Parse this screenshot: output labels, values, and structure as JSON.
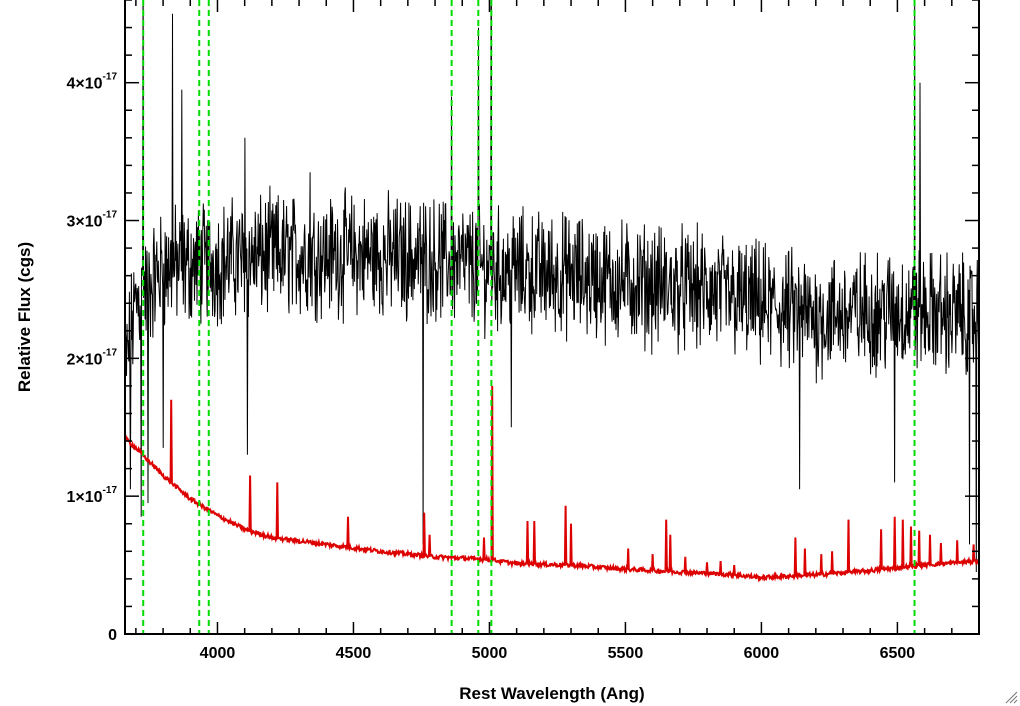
{
  "chart_data": {
    "type": "line",
    "xlabel": "Rest Wavelength (Ang)",
    "ylabel": "Relative Flux (cgs)",
    "xlim": [
      3660,
      6800
    ],
    "ylim": [
      0,
      4.6e-17
    ],
    "x_ticks": [
      {
        "value": 4000,
        "label": "4000"
      },
      {
        "value": 4500,
        "label": "4500"
      },
      {
        "value": 5000,
        "label": "5000"
      },
      {
        "value": 5500,
        "label": "5500"
      },
      {
        "value": 6000,
        "label": "6000"
      },
      {
        "value": 6500,
        "label": "6500"
      }
    ],
    "y_ticks": [
      {
        "value": 0,
        "label": "0",
        "exp": ""
      },
      {
        "value": 1e-17,
        "label": "1×10",
        "exp": "-17"
      },
      {
        "value": 2e-17,
        "label": "2×10",
        "exp": "-17"
      },
      {
        "value": 3e-17,
        "label": "3×10",
        "exp": "-17"
      },
      {
        "value": 4e-17,
        "label": "4×10",
        "exp": "-17"
      }
    ],
    "series": [
      {
        "color": "#000000",
        "style": "solid",
        "continuum": [
          [
            3660,
            1.9e-17
          ],
          [
            3700,
            2.4e-17
          ],
          [
            3800,
            2.65e-17
          ],
          [
            4000,
            2.7e-17
          ],
          [
            4200,
            2.75e-17
          ],
          [
            4500,
            2.75e-17
          ],
          [
            4800,
            2.72e-17
          ],
          [
            5000,
            2.65e-17
          ],
          [
            5300,
            2.6e-17
          ],
          [
            5500,
            2.55e-17
          ],
          [
            5800,
            2.48e-17
          ],
          [
            6000,
            2.38e-17
          ],
          [
            6200,
            2.3e-17
          ],
          [
            6500,
            2.35e-17
          ],
          [
            6800,
            2.3e-17
          ]
        ],
        "noise": 3.5e-18,
        "peaks": [
          [
            3727,
            5e-17
          ],
          [
            3835,
            4.5e-17
          ],
          [
            3868,
            3.95e-17
          ],
          [
            4101,
            3.6e-17
          ],
          [
            4340,
            3.35e-17
          ],
          [
            4861,
            3.9e-17
          ],
          [
            4959,
            4.4e-17
          ],
          [
            5007,
            6e-17
          ],
          [
            6563,
            4.6e-17
          ],
          [
            6583,
            4e-17
          ]
        ],
        "dips": [
          [
            3680,
            1.05e-17
          ],
          [
            3720,
            8.5e-18
          ],
          [
            3745,
            9.5e-18
          ],
          [
            3800,
            1.35e-17
          ],
          [
            4110,
            1.3e-17
          ],
          [
            4756,
            6.5e-18
          ],
          [
            5080,
            1.5e-17
          ],
          [
            6140,
            1.05e-17
          ],
          [
            6490,
            1.1e-17
          ],
          [
            6765,
            6.5e-18
          ],
          [
            6790,
            4.5e-18
          ]
        ]
      },
      {
        "color": "#dd0000",
        "style": "solid",
        "continuum": [
          [
            3660,
            1.42e-17
          ],
          [
            3700,
            1.35e-17
          ],
          [
            3800,
            1.15e-17
          ],
          [
            3900,
            9.8e-18
          ],
          [
            4000,
            8.6e-18
          ],
          [
            4100,
            7.6e-18
          ],
          [
            4200,
            7e-18
          ],
          [
            4400,
            6.5e-18
          ],
          [
            4600,
            6e-18
          ],
          [
            4800,
            5.6e-18
          ],
          [
            5000,
            5.4e-18
          ],
          [
            5100,
            5.1e-18
          ],
          [
            5300,
            5e-18
          ],
          [
            5500,
            4.7e-18
          ],
          [
            5700,
            4.5e-18
          ],
          [
            5900,
            4.3e-18
          ],
          [
            6000,
            4.1e-18
          ],
          [
            6200,
            4.3e-18
          ],
          [
            6400,
            4.6e-18
          ],
          [
            6600,
            5e-18
          ],
          [
            6800,
            5.3e-18
          ]
        ],
        "noise": 1.5e-19,
        "peaks": [
          [
            3830,
            1.7e-17
          ],
          [
            4120,
            1.15e-17
          ],
          [
            4220,
            1.1e-17
          ],
          [
            4480,
            8.5e-18
          ],
          [
            4760,
            8.8e-18
          ],
          [
            4780,
            7.2e-18
          ],
          [
            4980,
            7e-18
          ],
          [
            5010,
            1.8e-17
          ],
          [
            5140,
            8.2e-18
          ],
          [
            5165,
            8.2e-18
          ],
          [
            5280,
            9.3e-18
          ],
          [
            5300,
            8e-18
          ],
          [
            5510,
            6.2e-18
          ],
          [
            5600,
            5.8e-18
          ],
          [
            5650,
            8.3e-18
          ],
          [
            5665,
            7.2e-18
          ],
          [
            5720,
            5.6e-18
          ],
          [
            5800,
            5.2e-18
          ],
          [
            5850,
            5.3e-18
          ],
          [
            5900,
            5e-18
          ],
          [
            6125,
            7e-18
          ],
          [
            6160,
            6.2e-18
          ],
          [
            6220,
            5.8e-18
          ],
          [
            6260,
            6e-18
          ],
          [
            6320,
            8.3e-18
          ],
          [
            6440,
            7.6e-18
          ],
          [
            6490,
            8.5e-18
          ],
          [
            6520,
            8.3e-18
          ],
          [
            6550,
            7.8e-18
          ],
          [
            6580,
            7.5e-18
          ],
          [
            6620,
            7.2e-18
          ],
          [
            6660,
            6.6e-18
          ],
          [
            6720,
            6.8e-18
          ],
          [
            6780,
            6.5e-18
          ]
        ]
      }
    ],
    "vlines": [
      {
        "x": 3727,
        "color": "#00dd00",
        "style": "dashed"
      },
      {
        "x": 3933,
        "color": "#00dd00",
        "style": "dashed"
      },
      {
        "x": 3968,
        "color": "#00dd00",
        "style": "dashed"
      },
      {
        "x": 4861,
        "color": "#00dd00",
        "style": "dashed"
      },
      {
        "x": 4959,
        "color": "#00dd00",
        "style": "dashed"
      },
      {
        "x": 5007,
        "color": "#00dd00",
        "style": "dashed"
      },
      {
        "x": 6563,
        "color": "#00dd00",
        "style": "dashed"
      }
    ],
    "grid": false,
    "legend": "none"
  }
}
